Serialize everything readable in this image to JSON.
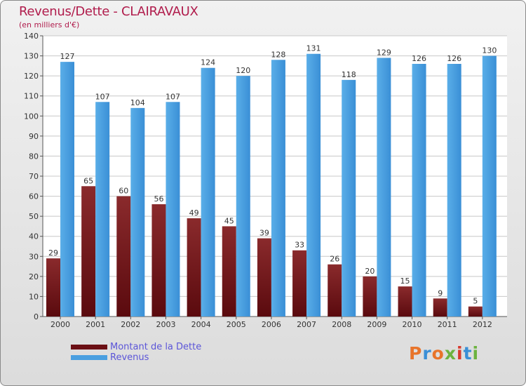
{
  "title": "Revenus/Dette - CLAIRAVAUX",
  "subtitle": "(en milliers d'€)",
  "brand": "Proxiti",
  "colors": {
    "dette": "#7a1a1e",
    "revenus": "#4a9fe0",
    "title": "#b01c4c",
    "legend_text": "#5b55d8"
  },
  "chart_data": {
    "type": "bar",
    "title": "Revenus/Dette - CLAIRAVAUX",
    "ylabel": "(en milliers d'€)",
    "xlabel": "",
    "ylim": [
      0,
      140
    ],
    "yticks": [
      0,
      10,
      20,
      30,
      40,
      50,
      60,
      70,
      80,
      90,
      100,
      110,
      120,
      130,
      140
    ],
    "grid": true,
    "legend": "bottom-left",
    "categories": [
      "2000",
      "2001",
      "2002",
      "2003",
      "2004",
      "2005",
      "2006",
      "2007",
      "2008",
      "2009",
      "2010",
      "2011",
      "2012"
    ],
    "series": [
      {
        "name": "Montant de la Dette",
        "values": [
          29,
          65,
          60,
          56,
          49,
          45,
          39,
          33,
          26,
          20,
          15,
          9,
          5
        ]
      },
      {
        "name": "Revenus",
        "values": [
          127,
          107,
          104,
          107,
          124,
          120,
          128,
          131,
          118,
          129,
          126,
          126,
          130
        ]
      }
    ]
  }
}
